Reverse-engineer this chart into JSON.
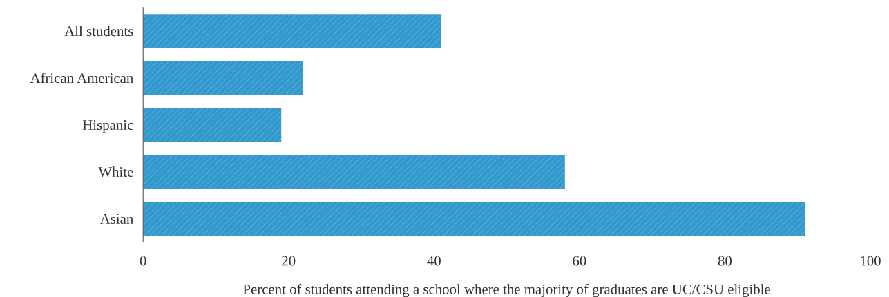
{
  "chart_data": {
    "type": "bar",
    "orientation": "horizontal",
    "categories": [
      "All students",
      "African American",
      "Hispanic",
      "White",
      "Asian"
    ],
    "values": [
      41,
      22,
      19,
      58,
      91
    ],
    "color": "#3399cc",
    "xlabel": "Percent of students attending a school where the majority of graduates are UC/CSU eligible",
    "xlim": [
      0,
      100
    ],
    "xticks": [
      0,
      20,
      40,
      60,
      80,
      100
    ],
    "grid": false,
    "legend": false
  }
}
